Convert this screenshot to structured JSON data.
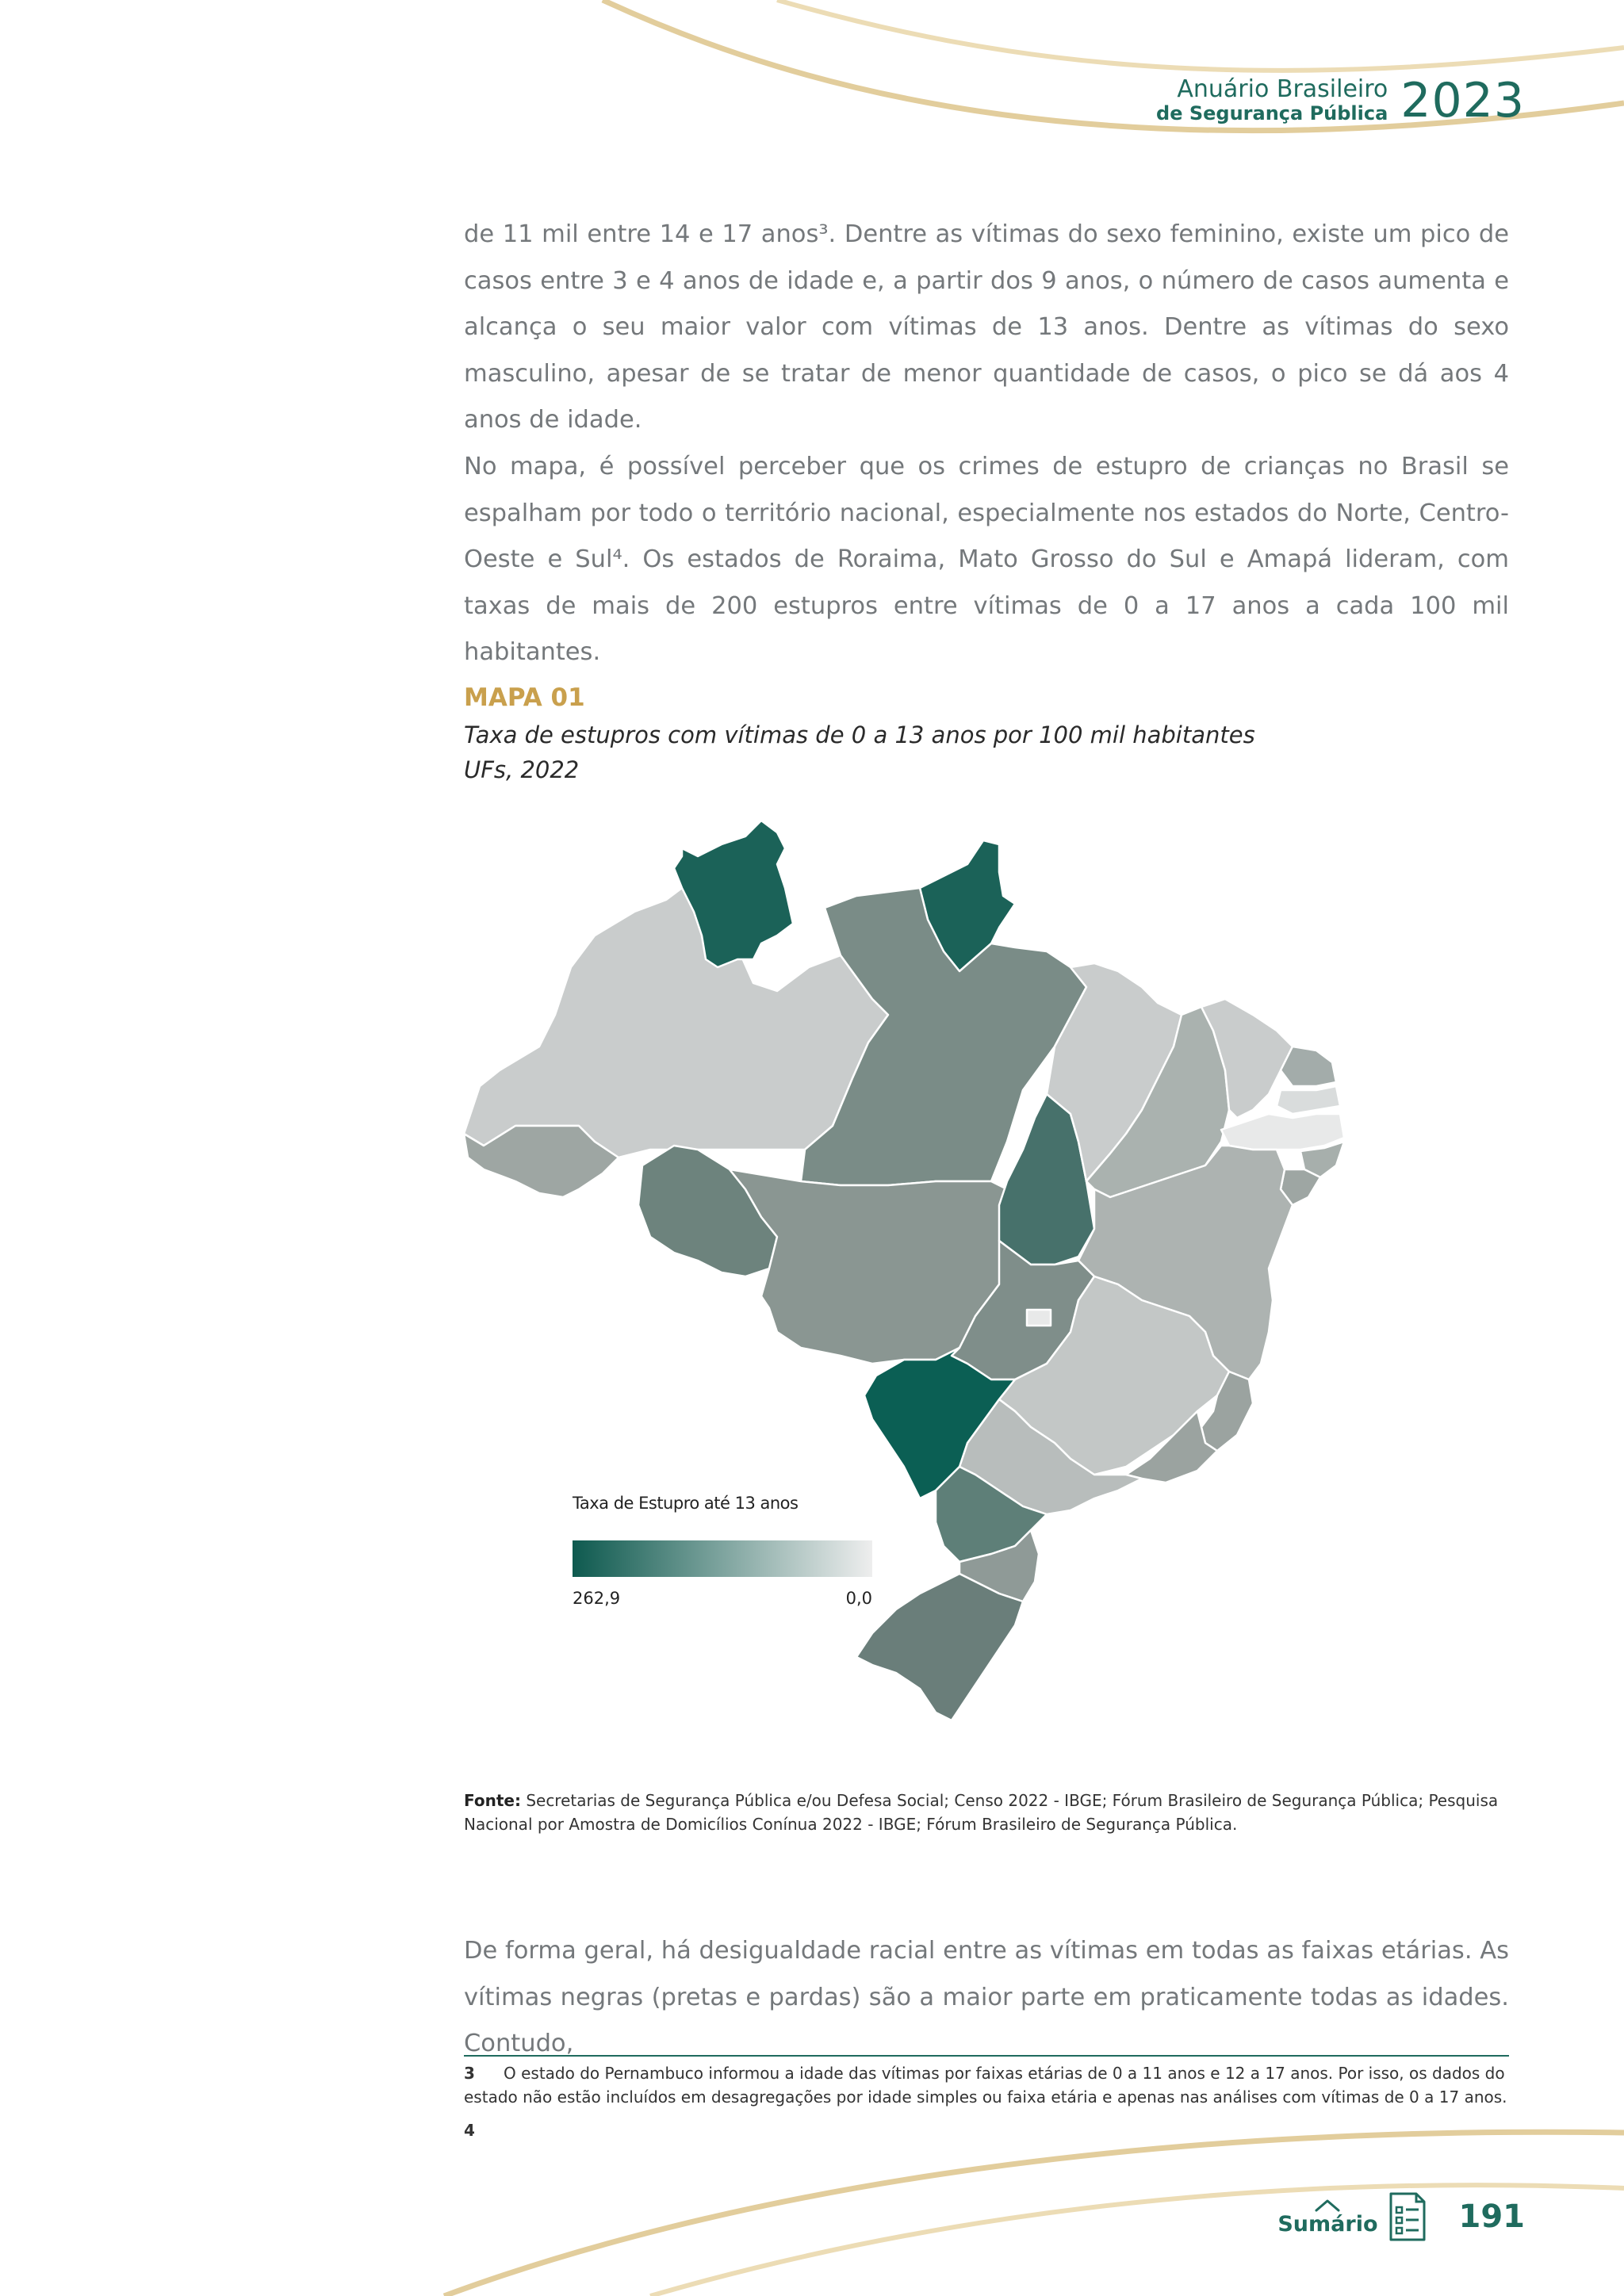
{
  "header": {
    "line1": "Anuário Brasileiro",
    "line2": "de Segurança Pública",
    "year": "2023"
  },
  "paragraphs": {
    "p1": "de 11 mil entre 14 e 17 anos³. Dentre as vítimas do sexo feminino, existe um pico de casos entre 3 e 4 anos de idade e, a partir dos 9 anos, o número de casos aumenta e alcança o seu maior valor com vítimas de 13 anos. Dentre as vítimas do sexo masculino, apesar de se tratar de menor quantidade de casos, o pico se dá aos 4 anos de idade.",
    "p2": "No mapa, é possível perceber que os crimes de estupro de crianças no Brasil se espalham por todo o território nacional, especialmente nos estados do Norte, Centro-Oeste e Sul⁴. Os estados de Roraima, Mato Grosso do Sul e Amapá lideram, com taxas de mais de 200 estupros entre vítimas de 0 a 17 anos a cada 100 mil habitantes.",
    "p3": "De forma geral, há desigualdade racial entre as vítimas em todas as faixas etárias. As vítimas negras (pretas e pardas) são a maior parte em praticamente todas as idades. Contudo,"
  },
  "map": {
    "label": "MAPA 01",
    "title": "Taxa de estupros com vítimas de 0 a 13 anos por 100 mil habitantes",
    "subtitle": "UFs, 2022",
    "legend": {
      "title": "Taxa de Estupro até 13 anos",
      "max_label": "262,9",
      "min_label": "0,0",
      "color_high": "#0e5a4f",
      "color_low": "#eeeeee"
    }
  },
  "source": {
    "label": "Fonte:",
    "text": "Secretarias de Segurança Pública e/ou Defesa Social; Censo 2022 - IBGE; Fórum Brasileiro de Segurança Pública; Pesquisa Nacional por Amostra de Domicílios Conínua 2022 - IBGE; Fórum Brasileiro de Segurança Pública."
  },
  "footnotes": {
    "fn3_num": "3",
    "fn3_text": "O estado do Pernambuco informou a idade das vítimas por faixas etárias de 0 a 11 anos e 12 a 17 anos. Por isso, os dados do estado não estão incluídos em desagregações por idade simples ou faixa etária e apenas nas análises com vítimas de 0 a 17 anos.",
    "fn4_num": "4"
  },
  "footer": {
    "sumario": "Sumário",
    "page_number": "191"
  },
  "icons": {
    "chevron": "chevron-up-icon",
    "toc": "table-of-contents-icon"
  },
  "colors": {
    "brand_green": "#1f6b5e",
    "gold": "#c9a04d",
    "body_text": "#74787b"
  }
}
